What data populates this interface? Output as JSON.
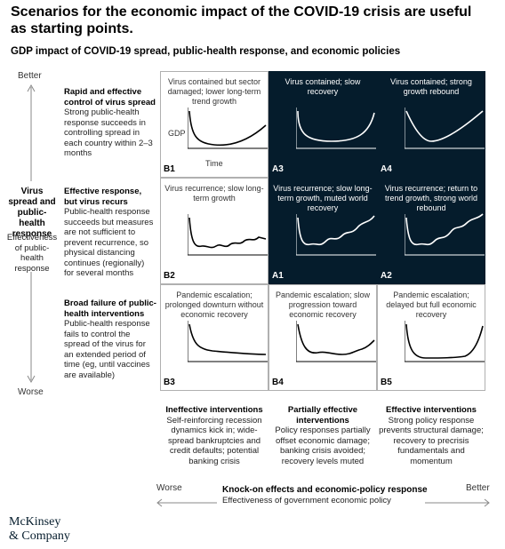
{
  "title": "Scenarios for the economic impact of the COVID-19 crisis are useful as starting points.",
  "subtitle": "GDP impact of COVID-19 spread, public-health response, and economic policies",
  "vertical_axis": {
    "top": "Better",
    "bottom": "Worse",
    "heading": "Virus spread and public-health response",
    "subheading": "Effectiveness of public-health response"
  },
  "rows": [
    {
      "heading": "Rapid and effective control of virus spread",
      "description": "Strong public-health response succeeds in controlling spread in each country within 2–3 months"
    },
    {
      "heading": "Effective response, but virus recurs",
      "description": "Public-health response succeeds but measures are not sufficient to prevent recurrence, so physical distancing continues (regionally) for several months"
    },
    {
      "heading": "Broad failure of public-health interventions",
      "description": "Public-health response fails to control the spread of the virus for an extended period of time (eg, until vaccines are available)"
    }
  ],
  "cells": [
    {
      "code": "B1",
      "text": "Virus contained but sector damaged; lower long-term trend growth",
      "curve": "shallow-u",
      "dark": false
    },
    {
      "code": "A3",
      "text": "Virus contained; slow recovery",
      "curve": "u",
      "dark": true
    },
    {
      "code": "A4",
      "text": "Virus contained; strong growth rebound",
      "curve": "v",
      "dark": true
    },
    {
      "code": "B2",
      "text": "Virus recurrence; slow long-term growth",
      "curve": "w-flat",
      "dark": false
    },
    {
      "code": "A1",
      "text": "Virus recurrence; slow long-term growth, muted world recovery",
      "curve": "w-rising",
      "dark": true
    },
    {
      "code": "A2",
      "text": "Virus recurrence; return to trend growth, strong world rebound",
      "curve": "w-rising-strong",
      "dark": true
    },
    {
      "code": "B3",
      "text": "Pandemic escalation; prolonged downturn without economic recovery",
      "curve": "l",
      "dark": false
    },
    {
      "code": "B4",
      "text": "Pandemic escalation; slow progression toward economic recovery",
      "curve": "l-slow",
      "dark": false
    },
    {
      "code": "B5",
      "text": "Pandemic escalation; delayed but full economic recovery",
      "curve": "bathtub",
      "dark": false
    }
  ],
  "sample_axis_labels": {
    "y": "GDP",
    "x": "Time"
  },
  "columns": [
    {
      "heading": "Ineffective interventions",
      "description": "Self-reinforcing recession dynamics kick in; wide-spread bankruptcies and credit defaults; potential banking crisis"
    },
    {
      "heading": "Partially effective interventions",
      "description": "Policy responses partially offset economic damage; banking crisis avoided; recovery levels muted"
    },
    {
      "heading": "Effective interventions",
      "description": "Strong policy response prevents structural damage; recovery to precrisis fundamentals and momentum"
    }
  ],
  "horizontal_axis": {
    "left": "Worse",
    "right": "Better",
    "heading": "Knock-on effects and economic-policy response",
    "subheading": "Effectiveness of government economic policy"
  },
  "logo": {
    "line1": "McKinsey",
    "line2": "& Company"
  },
  "colors": {
    "dark_cell": "#051c2c",
    "border": "#b0b0b0"
  }
}
